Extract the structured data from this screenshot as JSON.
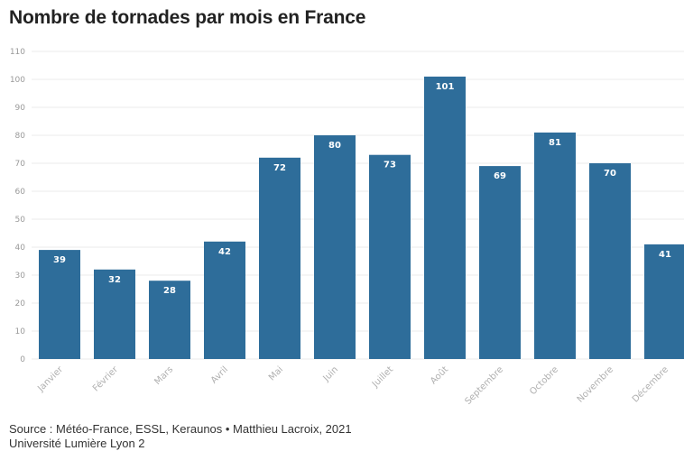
{
  "title": "Nombre de tornades par mois en France",
  "footer": {
    "source": "Source : Météo-France, ESSL, Keraunos • Matthieu Lacroix, 2021",
    "affiliation": "Université Lumière Lyon 2"
  },
  "colors": {
    "bar": "#2e6d9a",
    "grid": "#ebebeb"
  },
  "chart_data": {
    "type": "bar",
    "categories": [
      "Janvier",
      "Février",
      "Mars",
      "Avril",
      "Mai",
      "Juin",
      "Juillet",
      "Août",
      "Septembre",
      "Octobre",
      "Novembre",
      "Décembre"
    ],
    "values": [
      39,
      32,
      28,
      42,
      72,
      80,
      73,
      101,
      69,
      81,
      70,
      41
    ],
    "ylim": [
      0,
      110
    ],
    "yticks": [
      0,
      10,
      20,
      30,
      40,
      50,
      60,
      70,
      80,
      90,
      100,
      110
    ],
    "grid": true,
    "data_labels": true
  }
}
